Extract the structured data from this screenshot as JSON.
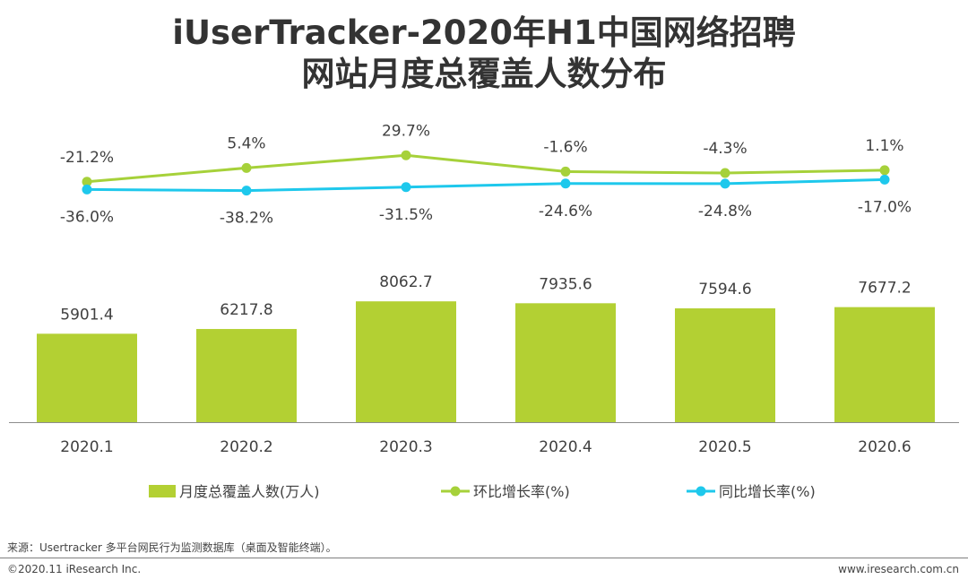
{
  "header": {
    "title_line1": "iUserTracker-2020年H1中国网络招聘",
    "title_line2": "网站月度总覆盖人数分布"
  },
  "chart_data": {
    "type": "bar",
    "categories": [
      "2020.1",
      "2020.2",
      "2020.3",
      "2020.4",
      "2020.5",
      "2020.6"
    ],
    "series": [
      {
        "name": "月度总覆盖人数(万人)",
        "type": "bar",
        "color": "#b3d033",
        "values": [
          5901.4,
          6217.8,
          8062.7,
          7935.6,
          7594.6,
          7677.2
        ],
        "labels": [
          "5901.4",
          "6217.8",
          "8062.7",
          "7935.6",
          "7594.6",
          "7677.2"
        ]
      },
      {
        "name": "环比增长率(%)",
        "type": "line",
        "color": "#a6d13a",
        "values": [
          -21.2,
          5.4,
          29.7,
          -1.6,
          -4.3,
          1.1
        ],
        "labels": [
          "-21.2%",
          "5.4%",
          "29.7%",
          "-1.6%",
          "-4.3%",
          "1.1%"
        ]
      },
      {
        "name": "同比增长率(%)",
        "type": "line",
        "color": "#1ec8ec",
        "values": [
          -36.0,
          -38.2,
          -31.5,
          -24.6,
          -24.8,
          -17.0
        ],
        "labels": [
          "-36.0%",
          "-38.2%",
          "-31.5%",
          "-24.6%",
          "-24.8%",
          "-17.0%"
        ]
      }
    ],
    "xlabel": "",
    "ylabel": "",
    "ylim": [
      0,
      10000
    ],
    "legend_position": "bottom"
  },
  "footer": {
    "source": "来源：Usertracker 多平台网民行为监测数据库（桌面及智能终端）。",
    "copyright": "©2020.11 iResearch Inc.",
    "website": "www.iresearch.com.cn"
  }
}
